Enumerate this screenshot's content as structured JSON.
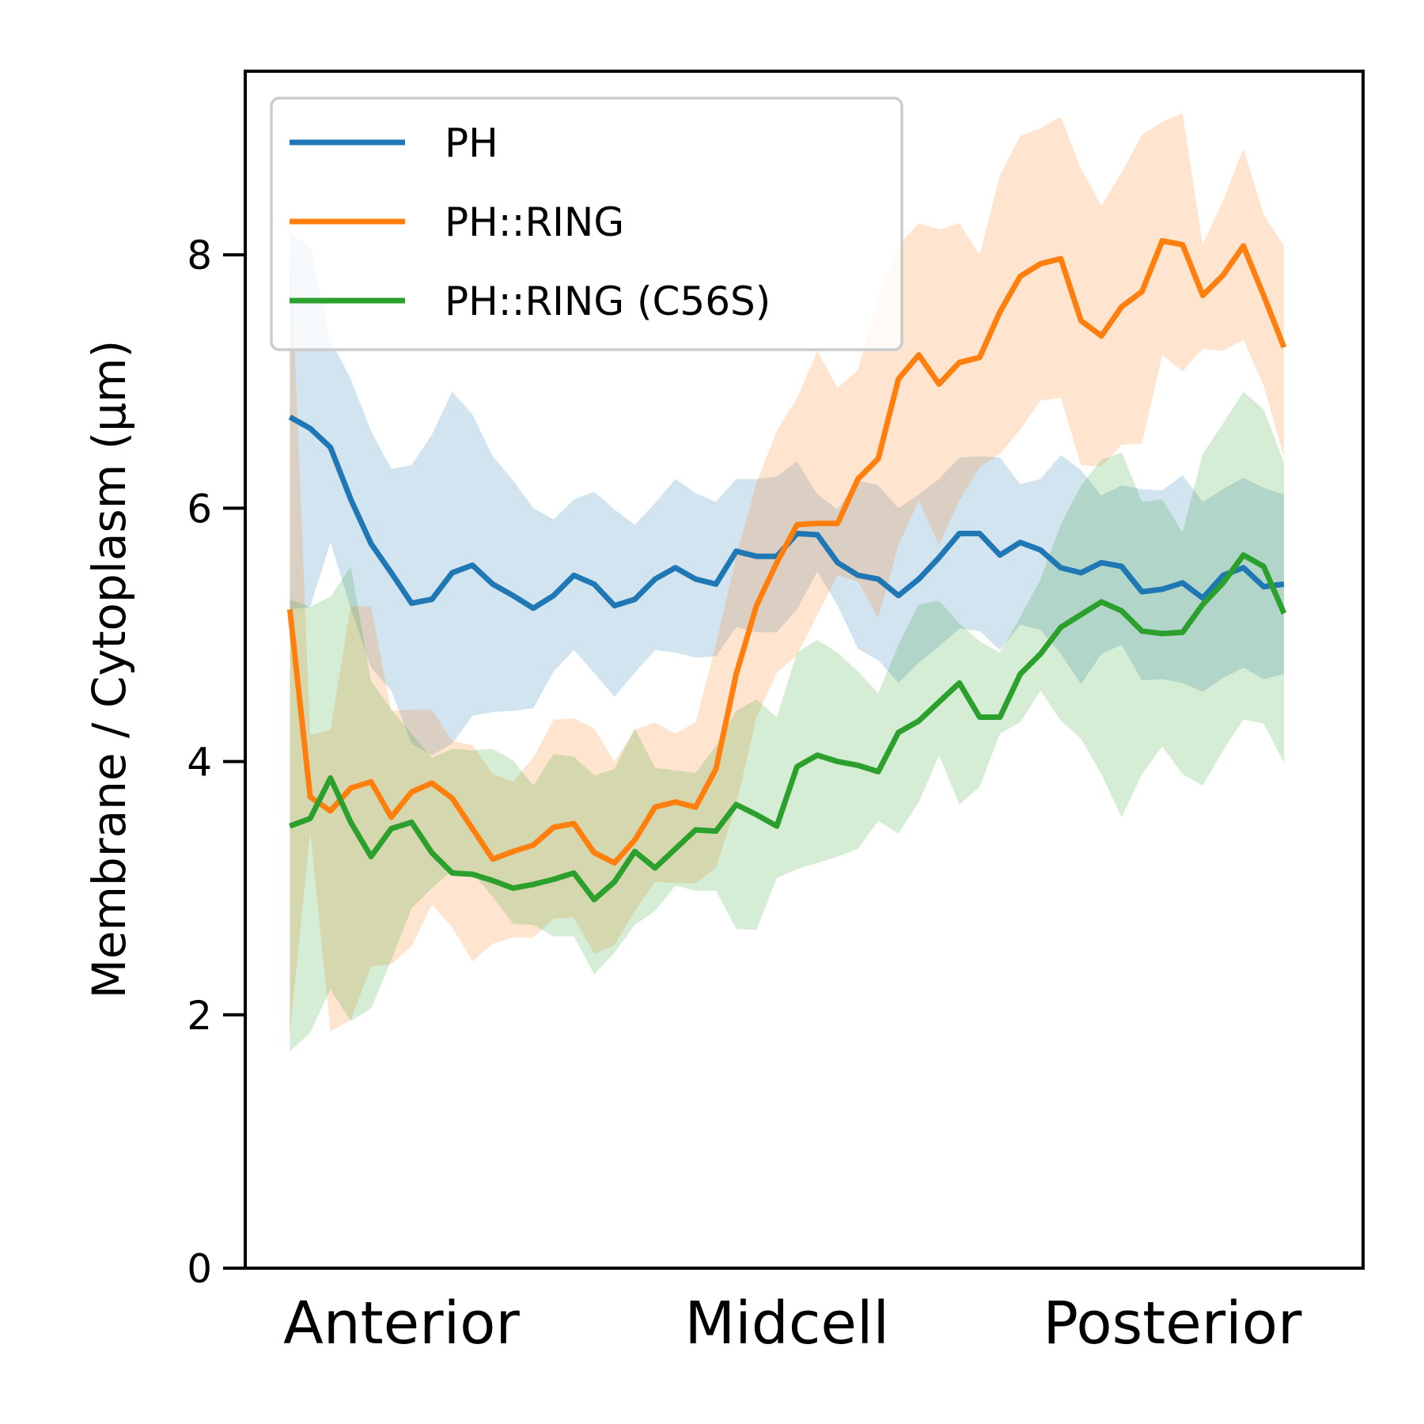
{
  "chart_data": {
    "type": "line",
    "xlabel": "",
    "ylabel": "Membrane / Cytoplasm (μm)",
    "ylim": [
      0,
      9.45
    ],
    "xlim": [
      -2.2,
      52.9
    ],
    "yticks": [
      0,
      2,
      4,
      6,
      8
    ],
    "x_category_labels": [
      {
        "label": "Anterior",
        "x": 5.5
      },
      {
        "label": "Midcell",
        "x": 24.5
      },
      {
        "label": "Posterior",
        "x": 43.5
      }
    ],
    "grid": false,
    "legend_position": "top-left",
    "series": [
      {
        "name": "PH",
        "color": "#1f77b4",
        "values": [
          6.72,
          6.63,
          6.48,
          6.07,
          5.72,
          5.49,
          5.25,
          5.28,
          5.49,
          5.55,
          5.4,
          5.31,
          5.21,
          5.31,
          5.47,
          5.4,
          5.23,
          5.28,
          5.44,
          5.53,
          5.44,
          5.4,
          5.66,
          5.62,
          5.62,
          5.8,
          5.79,
          5.57,
          5.47,
          5.44,
          5.31,
          5.44,
          5.61,
          5.8,
          5.8,
          5.63,
          5.73,
          5.67,
          5.53,
          5.49,
          5.57,
          5.54,
          5.34,
          5.36,
          5.41,
          5.29,
          5.47,
          5.53,
          5.38,
          5.4
        ],
        "upper": [
          8.18,
          8.06,
          7.33,
          7.02,
          6.61,
          6.31,
          6.34,
          6.58,
          6.92,
          6.74,
          6.41,
          6.22,
          6.0,
          5.91,
          6.07,
          6.13,
          5.99,
          5.87,
          6.04,
          6.23,
          6.12,
          6.05,
          6.23,
          6.23,
          6.25,
          6.37,
          6.11,
          5.99,
          6.22,
          6.18,
          6.0,
          6.11,
          6.23,
          6.4,
          6.41,
          6.4,
          6.19,
          6.23,
          6.42,
          6.3,
          6.1,
          6.18,
          6.15,
          6.14,
          6.26,
          6.05,
          6.15,
          6.24,
          6.16,
          6.11
        ],
        "lower": [
          5.2,
          5.22,
          5.73,
          5.21,
          4.74,
          4.56,
          4.14,
          4.05,
          4.14,
          4.36,
          4.39,
          4.4,
          4.42,
          4.71,
          4.88,
          4.7,
          4.51,
          4.7,
          4.88,
          4.86,
          4.82,
          4.83,
          5.06,
          5.02,
          5.02,
          5.2,
          5.5,
          5.23,
          4.89,
          4.8,
          4.62,
          4.78,
          4.91,
          5.05,
          5.03,
          4.88,
          5.08,
          5.04,
          4.85,
          4.61,
          4.85,
          4.92,
          4.64,
          4.65,
          4.62,
          4.55,
          4.66,
          4.74,
          4.65,
          4.69
        ]
      },
      {
        "name": "PH::RING",
        "color": "#ff7f0e",
        "values": [
          5.2,
          3.72,
          3.61,
          3.79,
          3.84,
          3.56,
          3.76,
          3.83,
          3.71,
          3.47,
          3.23,
          3.29,
          3.34,
          3.48,
          3.51,
          3.28,
          3.2,
          3.38,
          3.64,
          3.68,
          3.64,
          3.94,
          4.69,
          5.23,
          5.57,
          5.87,
          5.88,
          5.88,
          6.23,
          6.39,
          7.02,
          7.21,
          6.98,
          7.15,
          7.19,
          7.55,
          7.83,
          7.93,
          7.97,
          7.48,
          7.36,
          7.59,
          7.71,
          8.11,
          8.08,
          7.68,
          7.84,
          8.07,
          7.68,
          7.27
        ],
        "upper": [
          8.2,
          4.21,
          4.25,
          5.23,
          5.22,
          4.4,
          4.41,
          4.41,
          4.16,
          4.13,
          3.9,
          3.84,
          4.03,
          4.33,
          4.34,
          4.26,
          4.0,
          4.25,
          4.31,
          4.22,
          4.31,
          4.92,
          5.62,
          6.2,
          6.61,
          6.87,
          7.24,
          6.95,
          7.09,
          7.67,
          8.08,
          8.25,
          8.2,
          8.25,
          8.0,
          8.63,
          8.94,
          9.0,
          9.09,
          8.68,
          8.39,
          8.65,
          8.95,
          9.05,
          9.12,
          8.08,
          8.43,
          8.84,
          8.32,
          8.07
        ],
        "lower": [
          1.85,
          3.45,
          1.87,
          1.96,
          2.38,
          2.4,
          2.54,
          2.87,
          2.69,
          2.42,
          2.56,
          2.61,
          2.61,
          2.76,
          2.77,
          2.48,
          2.55,
          2.82,
          3.05,
          3.04,
          3.04,
          3.16,
          3.66,
          4.35,
          4.7,
          4.84,
          5.16,
          5.47,
          5.42,
          5.13,
          5.71,
          6.06,
          5.71,
          6.06,
          6.32,
          6.43,
          6.62,
          6.85,
          6.87,
          6.34,
          6.33,
          6.5,
          6.51,
          7.21,
          7.08,
          7.26,
          7.24,
          7.33,
          6.97,
          6.4
        ]
      },
      {
        "name": "PH::RING (C56S)",
        "color": "#2ca02c",
        "values": [
          3.49,
          3.55,
          3.87,
          3.52,
          3.25,
          3.47,
          3.52,
          3.28,
          3.12,
          3.11,
          3.06,
          3.0,
          3.03,
          3.07,
          3.12,
          2.91,
          3.05,
          3.29,
          3.16,
          3.31,
          3.46,
          3.45,
          3.66,
          3.58,
          3.49,
          3.96,
          4.05,
          4.0,
          3.97,
          3.92,
          4.23,
          4.32,
          4.47,
          4.62,
          4.35,
          4.35,
          4.69,
          4.85,
          5.06,
          5.16,
          5.26,
          5.19,
          5.03,
          5.01,
          5.02,
          5.24,
          5.41,
          5.63,
          5.54,
          5.17
        ],
        "upper": [
          5.28,
          5.22,
          5.3,
          5.54,
          4.64,
          4.41,
          4.22,
          4.03,
          4.1,
          4.09,
          4.1,
          4.01,
          3.81,
          4.06,
          4.04,
          3.89,
          3.94,
          4.26,
          3.95,
          3.93,
          3.91,
          4.12,
          4.4,
          4.49,
          4.35,
          4.86,
          4.96,
          4.86,
          4.71,
          4.54,
          4.92,
          5.24,
          5.27,
          5.09,
          4.95,
          4.86,
          5.14,
          5.44,
          5.87,
          6.18,
          6.38,
          6.44,
          6.05,
          6.07,
          5.81,
          6.43,
          6.67,
          6.92,
          6.78,
          6.36
        ],
        "lower": [
          1.71,
          1.86,
          2.2,
          1.95,
          2.05,
          2.43,
          2.84,
          3.0,
          3.14,
          3.12,
          2.93,
          2.72,
          2.71,
          2.62,
          2.62,
          2.32,
          2.49,
          2.71,
          2.82,
          3.02,
          2.98,
          2.98,
          2.68,
          2.67,
          3.08,
          3.15,
          3.2,
          3.25,
          3.31,
          3.53,
          3.43,
          3.68,
          4.05,
          3.66,
          3.8,
          4.22,
          4.31,
          4.56,
          4.32,
          4.18,
          3.9,
          3.56,
          3.9,
          4.12,
          3.9,
          3.81,
          4.09,
          4.33,
          4.3,
          3.99
        ]
      }
    ]
  }
}
